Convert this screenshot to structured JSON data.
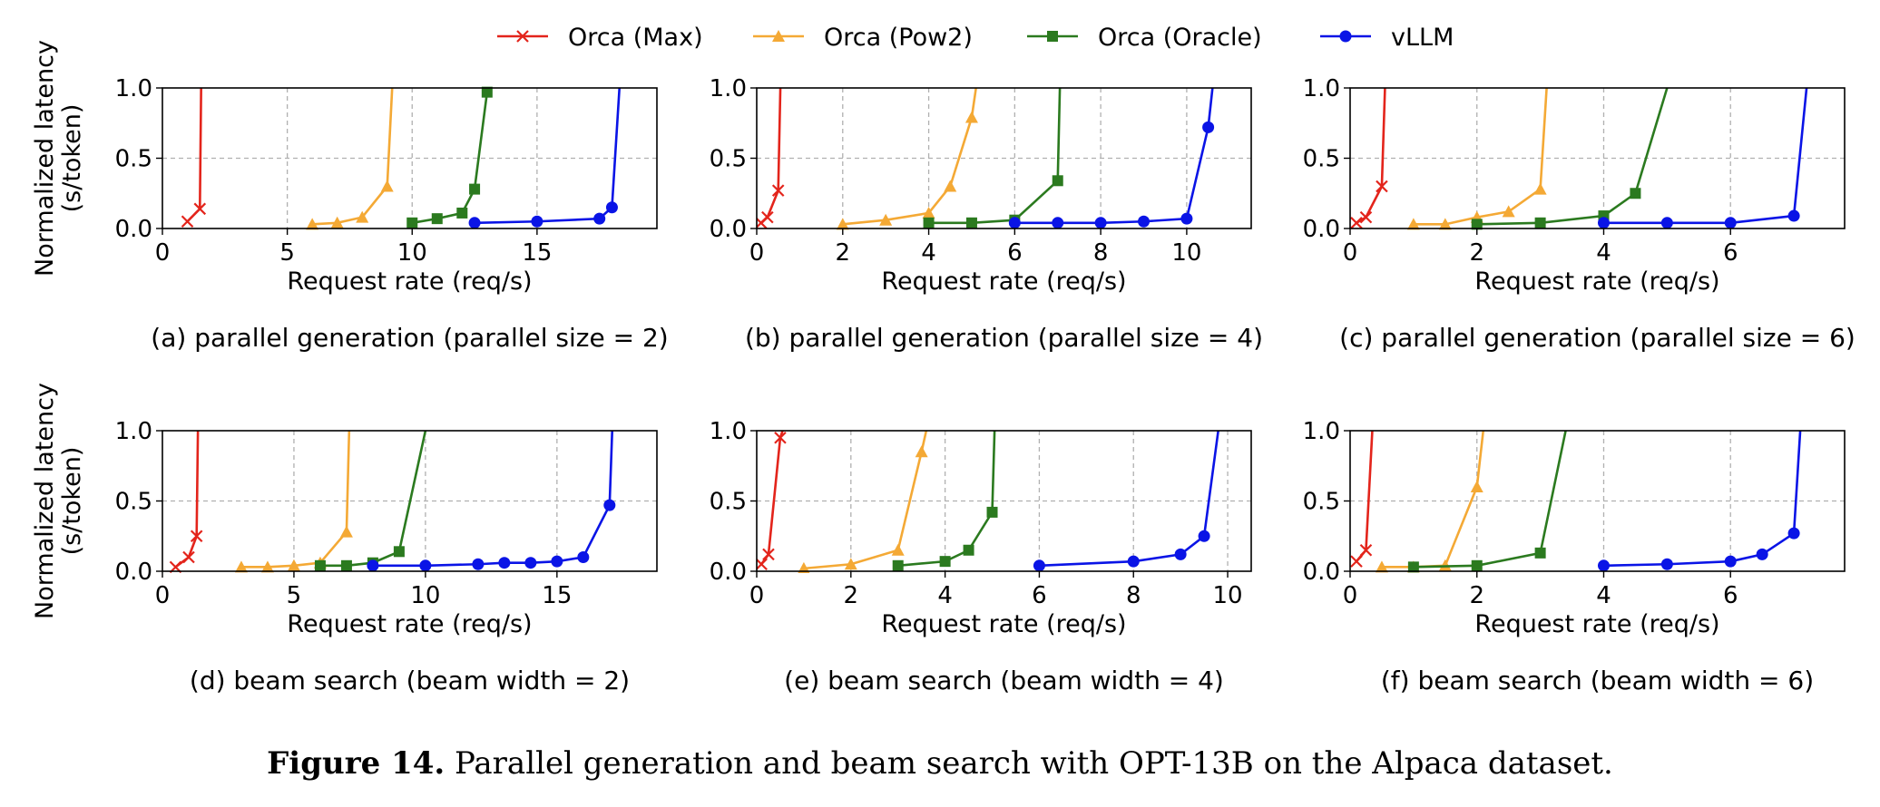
{
  "legend": {
    "items": [
      {
        "label": "Orca (Max)",
        "color": "#e3241b",
        "marker": "x"
      },
      {
        "label": "Orca (Pow2)",
        "color": "#f4a935",
        "marker": "triangle"
      },
      {
        "label": "Orca (Oracle)",
        "color": "#2b7a1f",
        "marker": "square"
      },
      {
        "label": "vLLM",
        "color": "#0a14e6",
        "marker": "circle"
      }
    ]
  },
  "figure_caption": {
    "label": "Figure 14.",
    "text": "Parallel generation and beam search with OPT-13B on the Alpaca dataset."
  },
  "chart_data": [
    {
      "type": "line",
      "caption": "(a) parallel generation (parallel size = 2)",
      "xlabel": "Request rate (req/s)",
      "ylabel": [
        "Normalized latency",
        "(s/token)"
      ],
      "xlim": [
        0,
        19.8
      ],
      "ylim": [
        0,
        1.0
      ],
      "xticks": [
        0,
        5,
        10,
        15
      ],
      "yticks": [
        0.0,
        0.5,
        1.0
      ],
      "grid": true,
      "series": [
        {
          "name": "Orca (Max)",
          "x": [
            1.0,
            1.5,
            1.55
          ],
          "y": [
            0.05,
            0.14,
            1.0
          ]
        },
        {
          "name": "Orca (Pow2)",
          "x": [
            6.0,
            7.0,
            8.0,
            9.0,
            9.2
          ],
          "y": [
            0.03,
            0.04,
            0.08,
            0.3,
            1.0
          ]
        },
        {
          "name": "Orca (Oracle)",
          "x": [
            10.0,
            11.0,
            12.0,
            12.5,
            13.0,
            13.1
          ],
          "y": [
            0.04,
            0.07,
            0.11,
            0.28,
            0.97,
            1.0
          ]
        },
        {
          "name": "vLLM",
          "x": [
            12.5,
            15.0,
            17.5,
            18.0,
            18.3
          ],
          "y": [
            0.04,
            0.05,
            0.07,
            0.15,
            1.0
          ]
        }
      ]
    },
    {
      "type": "line",
      "caption": "(b) parallel generation (parallel size = 4)",
      "xlabel": "Request rate (req/s)",
      "ylabel": [],
      "xlim": [
        0,
        11.5
      ],
      "ylim": [
        0,
        1.0
      ],
      "xticks": [
        0,
        2,
        4,
        6,
        8,
        10
      ],
      "yticks": [
        0.0,
        0.5,
        1.0
      ],
      "grid": true,
      "series": [
        {
          "name": "Orca (Max)",
          "x": [
            0.1,
            0.25,
            0.5,
            0.55
          ],
          "y": [
            0.04,
            0.08,
            0.27,
            1.0
          ]
        },
        {
          "name": "Orca (Pow2)",
          "x": [
            2.0,
            3.0,
            4.0,
            4.5,
            5.0,
            5.1
          ],
          "y": [
            0.03,
            0.06,
            0.11,
            0.3,
            0.79,
            1.0
          ]
        },
        {
          "name": "Orca (Oracle)",
          "x": [
            4.0,
            5.0,
            6.0,
            7.0,
            7.05
          ],
          "y": [
            0.04,
            0.04,
            0.06,
            0.34,
            1.0
          ]
        },
        {
          "name": "vLLM",
          "x": [
            6.0,
            7.0,
            8.0,
            9.0,
            10.0,
            10.5,
            10.6
          ],
          "y": [
            0.04,
            0.04,
            0.04,
            0.05,
            0.07,
            0.72,
            1.0
          ]
        }
      ]
    },
    {
      "type": "line",
      "caption": "(c) parallel generation (parallel size = 6)",
      "xlabel": "Request rate (req/s)",
      "ylabel": [],
      "xlim": [
        0,
        7.8
      ],
      "ylim": [
        0,
        1.0
      ],
      "xticks": [
        0,
        2,
        4,
        6
      ],
      "yticks": [
        0.0,
        0.5,
        1.0
      ],
      "grid": true,
      "series": [
        {
          "name": "Orca (Max)",
          "x": [
            0.1,
            0.25,
            0.5,
            0.55
          ],
          "y": [
            0.04,
            0.08,
            0.3,
            1.0
          ]
        },
        {
          "name": "Orca (Pow2)",
          "x": [
            1.0,
            1.5,
            2.0,
            2.5,
            3.0,
            3.1
          ],
          "y": [
            0.03,
            0.03,
            0.08,
            0.12,
            0.28,
            1.0
          ]
        },
        {
          "name": "Orca (Oracle)",
          "x": [
            2.0,
            3.0,
            4.0,
            4.5,
            5.0
          ],
          "y": [
            0.03,
            0.04,
            0.09,
            0.25,
            1.0
          ]
        },
        {
          "name": "vLLM",
          "x": [
            4.0,
            5.0,
            6.0,
            7.0,
            7.2
          ],
          "y": [
            0.04,
            0.04,
            0.04,
            0.09,
            1.0
          ]
        }
      ]
    },
    {
      "type": "line",
      "caption": "(d) beam search (beam width = 2)",
      "xlabel": "Request rate (req/s)",
      "ylabel": [
        "Normalized latency",
        "(s/token)"
      ],
      "xlim": [
        0,
        18.8
      ],
      "ylim": [
        0,
        1.0
      ],
      "xticks": [
        0,
        5,
        10,
        15
      ],
      "yticks": [
        0.0,
        0.5,
        1.0
      ],
      "grid": true,
      "series": [
        {
          "name": "Orca (Max)",
          "x": [
            0.5,
            1.0,
            1.3,
            1.35
          ],
          "y": [
            0.03,
            0.1,
            0.25,
            1.0
          ]
        },
        {
          "name": "Orca (Pow2)",
          "x": [
            3.0,
            4.0,
            5.0,
            6.0,
            7.0,
            7.1
          ],
          "y": [
            0.03,
            0.03,
            0.04,
            0.06,
            0.28,
            1.0
          ]
        },
        {
          "name": "Orca (Oracle)",
          "x": [
            6.0,
            7.0,
            8.0,
            9.0,
            10.0
          ],
          "y": [
            0.04,
            0.04,
            0.06,
            0.14,
            1.0
          ]
        },
        {
          "name": "vLLM",
          "x": [
            8.0,
            10.0,
            12.0,
            13.0,
            14.0,
            15.0,
            16.0,
            17.0,
            17.1
          ],
          "y": [
            0.04,
            0.04,
            0.05,
            0.06,
            0.06,
            0.07,
            0.1,
            0.47,
            1.0
          ]
        }
      ]
    },
    {
      "type": "line",
      "caption": "(e) beam search (beam width = 4)",
      "xlabel": "Request rate (req/s)",
      "ylabel": [],
      "xlim": [
        0,
        10.5
      ],
      "ylim": [
        0,
        1.0
      ],
      "xticks": [
        0,
        2,
        4,
        6,
        8,
        10
      ],
      "yticks": [
        0.0,
        0.5,
        1.0
      ],
      "grid": true,
      "series": [
        {
          "name": "Orca (Max)",
          "x": [
            0.1,
            0.25,
            0.5,
            0.55
          ],
          "y": [
            0.05,
            0.12,
            0.95,
            1.0
          ]
        },
        {
          "name": "Orca (Pow2)",
          "x": [
            1.0,
            2.0,
            3.0,
            3.5,
            3.6
          ],
          "y": [
            0.02,
            0.05,
            0.15,
            0.85,
            1.0
          ]
        },
        {
          "name": "Orca (Oracle)",
          "x": [
            3.0,
            4.0,
            4.5,
            5.0,
            5.05
          ],
          "y": [
            0.04,
            0.07,
            0.15,
            0.42,
            1.0
          ]
        },
        {
          "name": "vLLM",
          "x": [
            6.0,
            8.0,
            9.0,
            9.5,
            9.8
          ],
          "y": [
            0.04,
            0.07,
            0.12,
            0.25,
            1.0
          ]
        }
      ]
    },
    {
      "type": "line",
      "caption": "(f) beam search (beam width = 6)",
      "xlabel": "Request rate (req/s)",
      "ylabel": [],
      "xlim": [
        0,
        7.8
      ],
      "ylim": [
        0,
        1.0
      ],
      "xticks": [
        0,
        2,
        4,
        6
      ],
      "yticks": [
        0.0,
        0.5,
        1.0
      ],
      "grid": true,
      "series": [
        {
          "name": "Orca (Max)",
          "x": [
            0.1,
            0.25,
            0.35
          ],
          "y": [
            0.07,
            0.15,
            1.0
          ]
        },
        {
          "name": "Orca (Pow2)",
          "x": [
            0.5,
            1.0,
            1.5,
            2.0,
            2.1
          ],
          "y": [
            0.03,
            0.03,
            0.04,
            0.6,
            1.0
          ]
        },
        {
          "name": "Orca (Oracle)",
          "x": [
            1.0,
            2.0,
            3.0,
            3.4
          ],
          "y": [
            0.03,
            0.04,
            0.13,
            1.0
          ]
        },
        {
          "name": "vLLM",
          "x": [
            4.0,
            5.0,
            6.0,
            6.5,
            7.0,
            7.1
          ],
          "y": [
            0.04,
            0.05,
            0.07,
            0.12,
            0.27,
            1.0
          ]
        }
      ]
    }
  ]
}
